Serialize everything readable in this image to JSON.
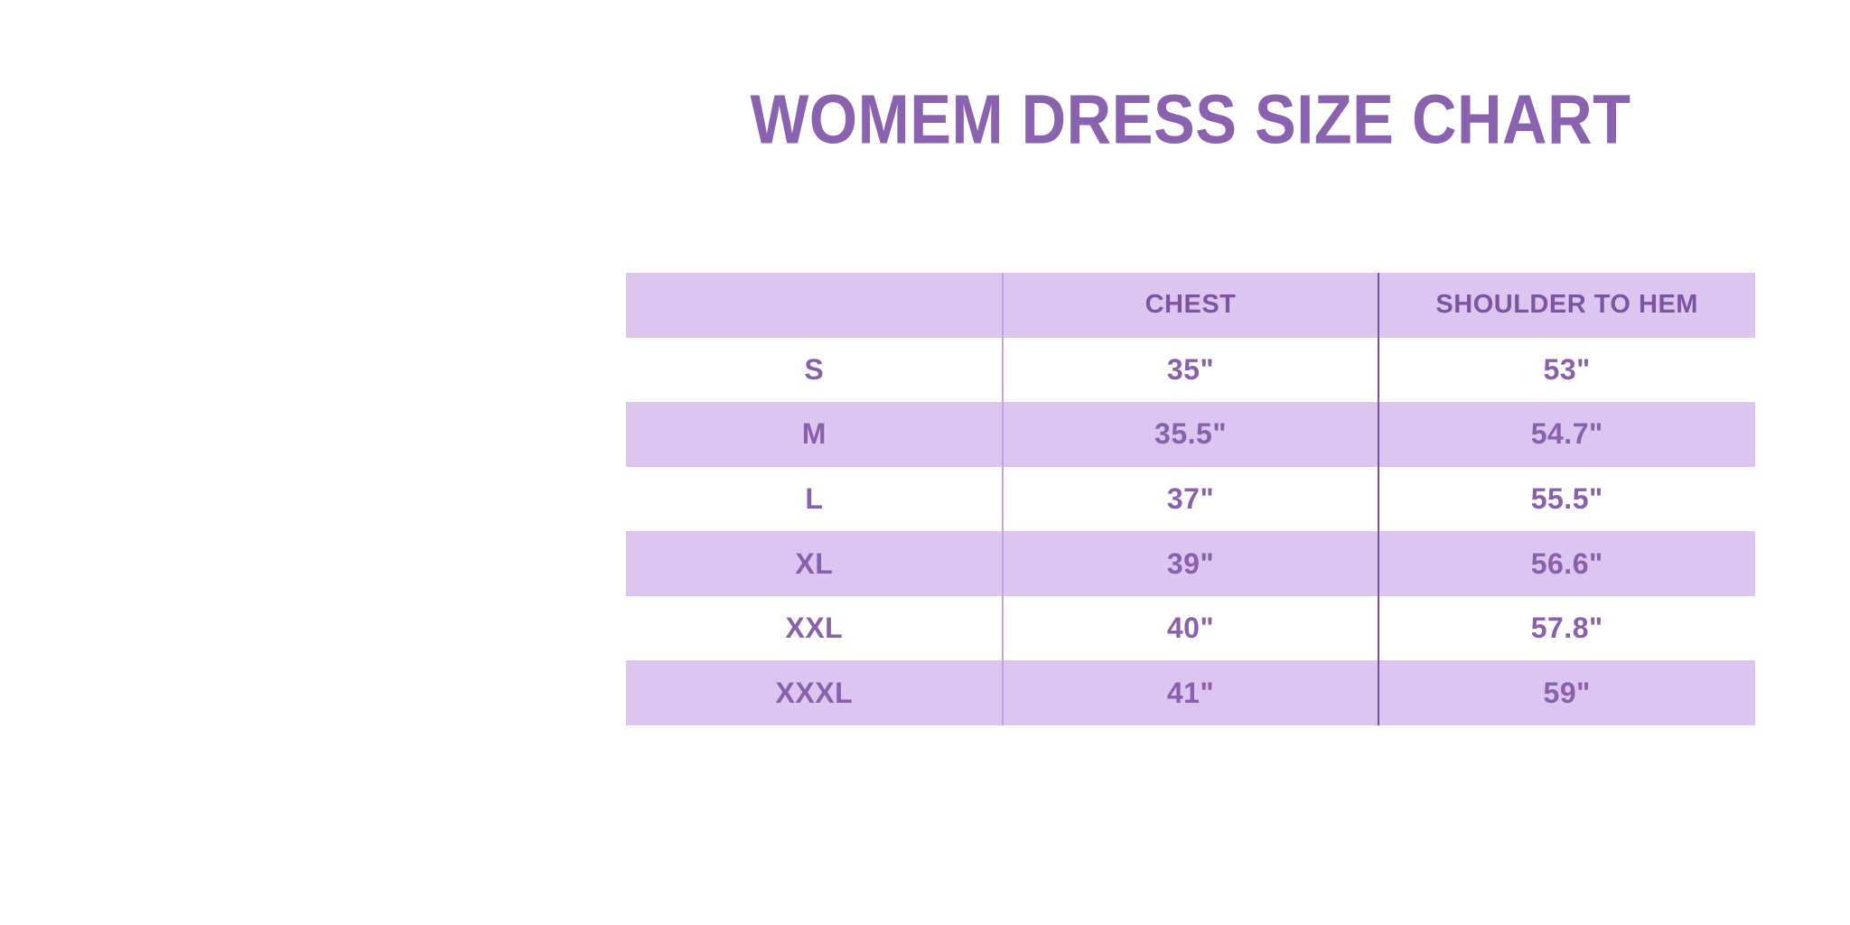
{
  "page": {
    "title": "WOMEM DRESS SIZE CHART"
  },
  "colors": {
    "page_background": "#ffffff",
    "title_text": "#8a62b0",
    "header_text": "#7d54a0",
    "cell_text": "#8a60ad",
    "row_lavender": "#dcc6f0",
    "row_white": "#ffffff",
    "divider_light": "#c4a5e3",
    "divider_dark": "#7a529e"
  },
  "chart_data": {
    "type": "table",
    "title": "WOMEM DRESS SIZE CHART",
    "columns": [
      "",
      "CHEST",
      "SHOULDER TO HEM"
    ],
    "rows": [
      [
        "S",
        "35\"",
        "53\""
      ],
      [
        "M",
        "35.5\"",
        "54.7\""
      ],
      [
        "L",
        "37\"",
        "55.5\""
      ],
      [
        "XL",
        "39\"",
        "56.6\""
      ],
      [
        "XXL",
        "40\"",
        "57.8\""
      ],
      [
        "XXXL",
        "41\"",
        "59\""
      ]
    ],
    "layout": {
      "alternating_row_colors": true,
      "first_data_row_background": "white",
      "header_background": "lavender",
      "column_alignment": "center"
    }
  }
}
